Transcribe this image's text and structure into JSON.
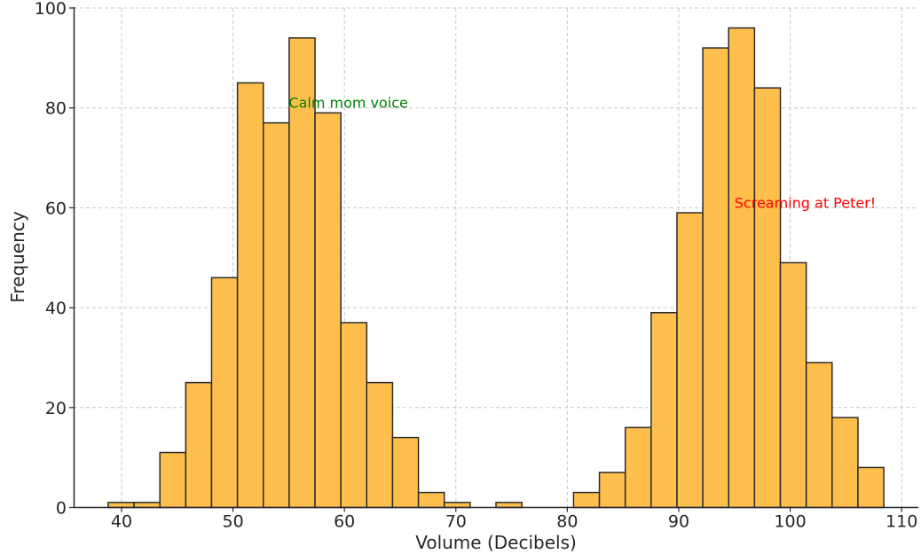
{
  "chart_data": {
    "type": "bar",
    "title": "",
    "xlabel": "Volume (Decibels)",
    "ylabel": "Frequency",
    "xlim": [
      35.7,
      111.5
    ],
    "ylim": [
      0,
      100
    ],
    "xticks": [
      40,
      50,
      60,
      70,
      80,
      90,
      100,
      110
    ],
    "yticks": [
      0,
      20,
      40,
      60,
      80,
      100
    ],
    "grid": true,
    "bar_color": "#ffbf4d",
    "bar_edge_color": "#2b2b2b",
    "bin_width": 2.32,
    "bins": [
      {
        "left": 38.8,
        "value": 1
      },
      {
        "left": 41.12,
        "value": 1
      },
      {
        "left": 43.44,
        "value": 11
      },
      {
        "left": 45.76,
        "value": 25
      },
      {
        "left": 48.08,
        "value": 46
      },
      {
        "left": 50.4,
        "value": 85
      },
      {
        "left": 52.72,
        "value": 77
      },
      {
        "left": 55.04,
        "value": 94
      },
      {
        "left": 57.36,
        "value": 79
      },
      {
        "left": 59.68,
        "value": 37
      },
      {
        "left": 62.0,
        "value": 25
      },
      {
        "left": 64.32,
        "value": 14
      },
      {
        "left": 66.64,
        "value": 3
      },
      {
        "left": 68.96,
        "value": 1
      },
      {
        "left": 73.6,
        "value": 1
      },
      {
        "left": 80.56,
        "value": 3
      },
      {
        "left": 82.88,
        "value": 7
      },
      {
        "left": 85.2,
        "value": 16
      },
      {
        "left": 87.52,
        "value": 39
      },
      {
        "left": 89.84,
        "value": 59
      },
      {
        "left": 92.16,
        "value": 92
      },
      {
        "left": 94.48,
        "value": 96
      },
      {
        "left": 96.8,
        "value": 84
      },
      {
        "left": 99.12,
        "value": 49
      },
      {
        "left": 101.44,
        "value": 29
      },
      {
        "left": 103.76,
        "value": 18
      },
      {
        "left": 106.08,
        "value": 8
      }
    ],
    "annotations": [
      {
        "text": "Calm mom voice",
        "x": 55,
        "y": 80,
        "color": "#008000"
      },
      {
        "text": "Screaming at Peter!",
        "x": 95,
        "y": 60,
        "color": "#ff0000"
      }
    ]
  }
}
